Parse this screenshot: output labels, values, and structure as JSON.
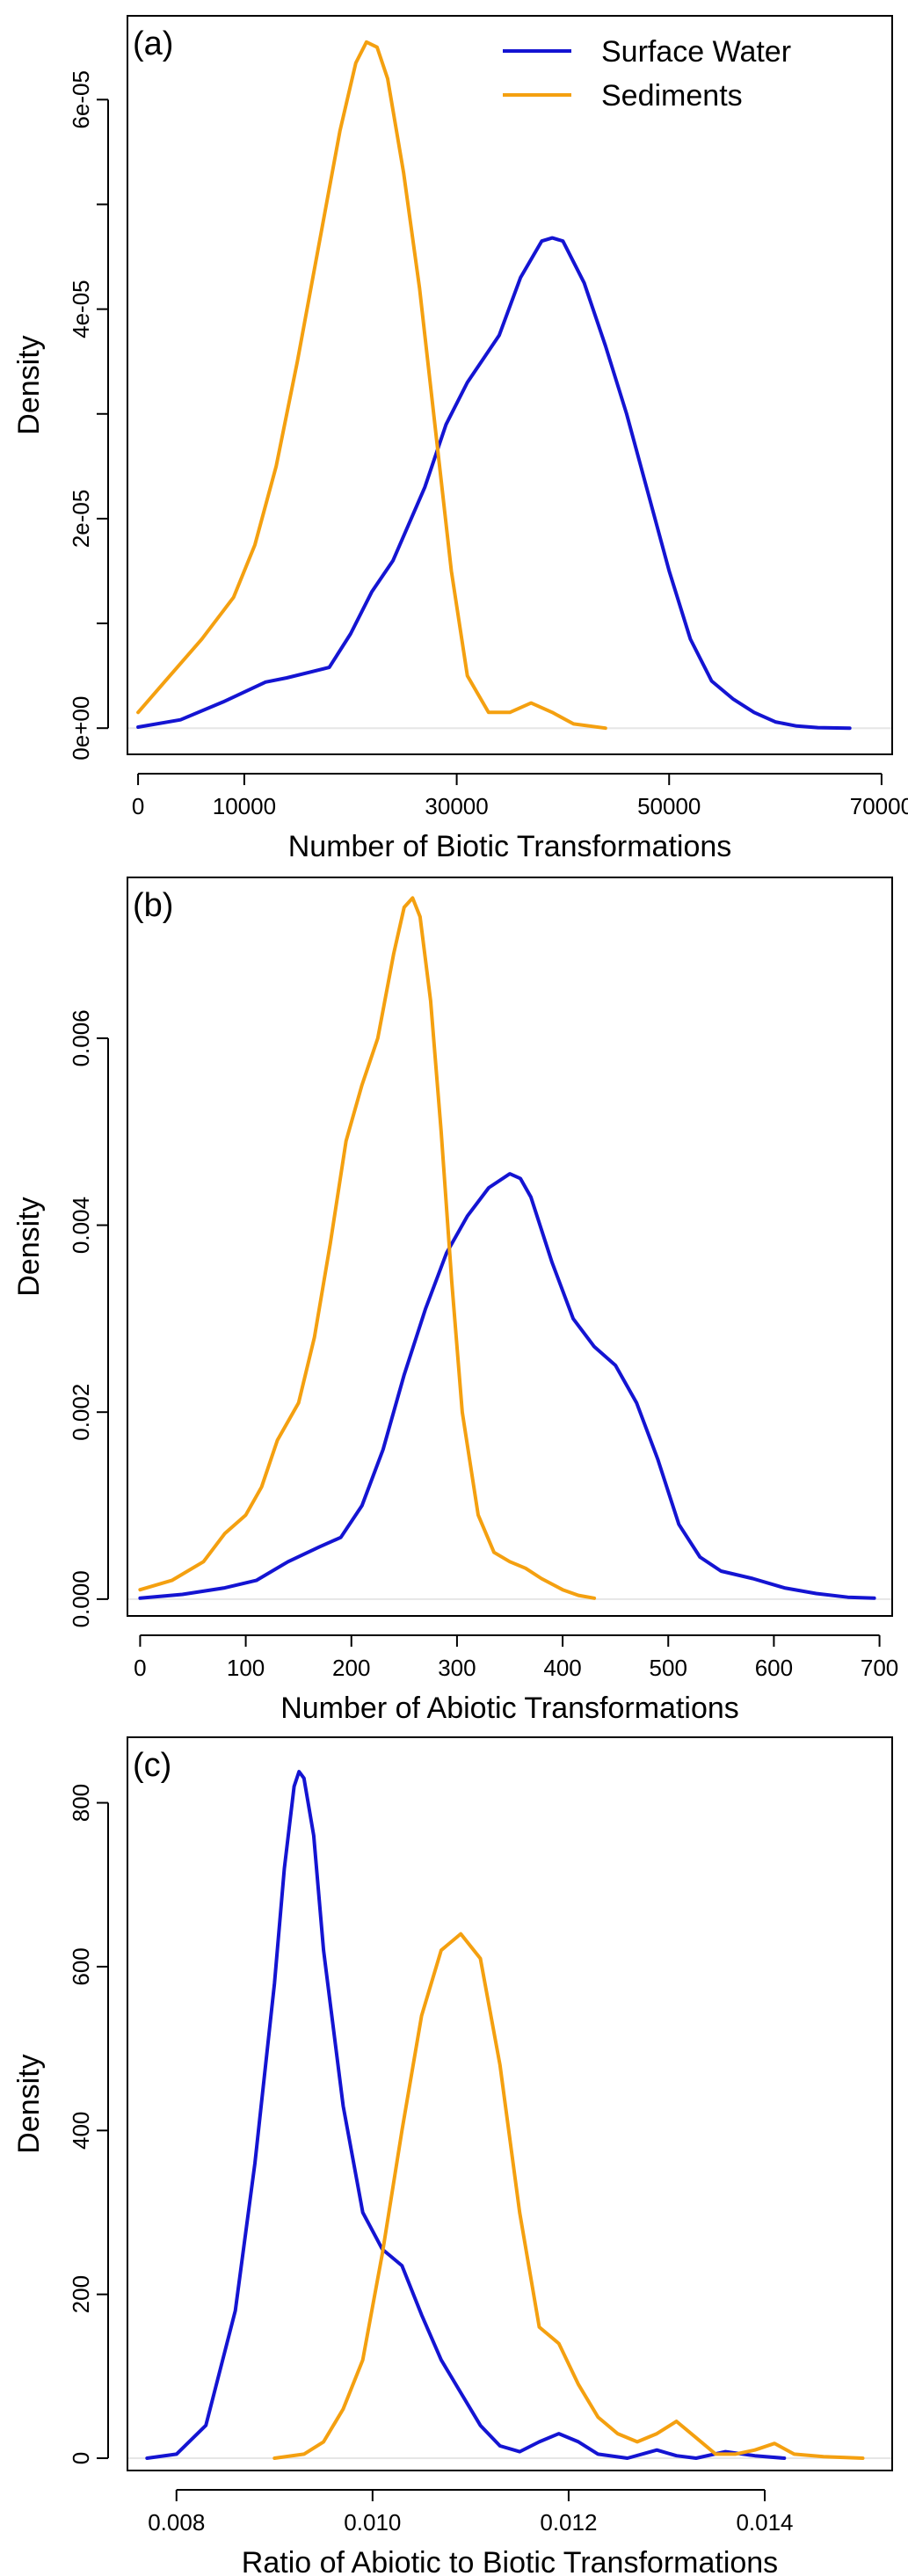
{
  "colors": {
    "surface_water": "#1414d2",
    "sediments": "#f4a010"
  },
  "chart_data": [
    {
      "type": "line",
      "panel_label": "(a)",
      "xlabel": "Number of Biotic Transformations",
      "ylabel": "Density",
      "xlim": [
        -1000,
        71000
      ],
      "ylim": [
        -2.5e-06,
        6.8e-05
      ],
      "x_ticks": [
        0,
        10000,
        30000,
        50000,
        70000
      ],
      "x_tick_labels": [
        "0",
        "10000",
        "30000",
        "50000",
        "70000"
      ],
      "y_ticks": [
        0,
        1e-05,
        2e-05,
        3e-05,
        4e-05,
        5e-05,
        6e-05
      ],
      "y_tick_labels": [
        "0e+00",
        "",
        "2e-05",
        "",
        "4e-05",
        "",
        "6e-05"
      ],
      "legend": {
        "position": "top-right",
        "entries": [
          "Surface Water",
          "Sediments"
        ]
      },
      "series": [
        {
          "name": "Surface Water",
          "color": "#1414d2",
          "x": [
            0,
            4000,
            8000,
            12000,
            14000,
            18000,
            20000,
            22000,
            24000,
            27000,
            29000,
            31000,
            34000,
            36000,
            38000,
            39000,
            40000,
            42000,
            44000,
            46000,
            48000,
            50000,
            52000,
            54000,
            56000,
            58000,
            60000,
            62000,
            64000,
            67000
          ],
          "y": [
            1e-07,
            8e-07,
            2.5e-06,
            4.4e-06,
            4.8e-06,
            5.8e-06,
            9e-06,
            1.3e-05,
            1.6e-05,
            2.3e-05,
            2.9e-05,
            3.3e-05,
            3.75e-05,
            4.3e-05,
            4.65e-05,
            4.68e-05,
            4.65e-05,
            4.25e-05,
            3.65e-05,
            3e-05,
            2.25e-05,
            1.5e-05,
            8.5e-06,
            4.5e-06,
            2.8e-06,
            1.5e-06,
            6e-07,
            2e-07,
            5e-08,
            0.0
          ]
        },
        {
          "name": "Sediments",
          "color": "#f4a010",
          "x": [
            0,
            3000,
            6000,
            9000,
            11000,
            13000,
            15000,
            17000,
            19000,
            20500,
            21500,
            22500,
            23500,
            25000,
            26500,
            28000,
            29500,
            31000,
            33000,
            35000,
            37000,
            39000,
            41000,
            44000
          ],
          "y": [
            1.5e-06,
            5e-06,
            8.5e-06,
            1.25e-05,
            1.75e-05,
            2.5e-05,
            3.5e-05,
            4.6e-05,
            5.7e-05,
            6.35e-05,
            6.55e-05,
            6.5e-05,
            6.2e-05,
            5.3e-05,
            4.2e-05,
            2.85e-05,
            1.5e-05,
            5e-06,
            1.5e-06,
            1.5e-06,
            2.4e-06,
            1.5e-06,
            4e-07,
            0.0
          ]
        }
      ]
    },
    {
      "type": "line",
      "panel_label": "(b)",
      "xlabel": "Number of Abiotic Transformations",
      "ylabel": "Density",
      "xlim": [
        -12,
        712
      ],
      "ylim": [
        -0.00018,
        0.00772
      ],
      "x_ticks": [
        0,
        100,
        200,
        300,
        400,
        500,
        600,
        700
      ],
      "x_tick_labels": [
        "0",
        "100",
        "200",
        "300",
        "400",
        "500",
        "600",
        "700"
      ],
      "y_ticks": [
        0,
        0.002,
        0.004,
        0.006
      ],
      "y_tick_labels": [
        "0.000",
        "0.002",
        "0.004",
        "0.006"
      ],
      "series": [
        {
          "name": "Surface Water",
          "color": "#1414d2",
          "x": [
            0,
            40,
            80,
            110,
            140,
            170,
            190,
            210,
            230,
            250,
            270,
            290,
            310,
            330,
            350,
            360,
            370,
            390,
            410,
            430,
            450,
            470,
            490,
            510,
            530,
            550,
            580,
            610,
            640,
            670,
            695
          ],
          "y": [
            1e-05,
            5e-05,
            0.00012,
            0.0002,
            0.0004,
            0.00056,
            0.00066,
            0.001,
            0.0016,
            0.0024,
            0.0031,
            0.0037,
            0.0041,
            0.0044,
            0.00455,
            0.0045,
            0.0043,
            0.0036,
            0.003,
            0.0027,
            0.0025,
            0.0021,
            0.0015,
            0.0008,
            0.00045,
            0.0003,
            0.00022,
            0.00012,
            6e-05,
            2e-05,
            1e-05
          ]
        },
        {
          "name": "Sediments",
          "color": "#f4a010",
          "x": [
            0,
            30,
            60,
            80,
            100,
            115,
            130,
            150,
            165,
            180,
            195,
            210,
            225,
            240,
            250,
            258,
            265,
            275,
            285,
            295,
            305,
            320,
            335,
            350,
            365,
            380,
            400,
            415,
            430
          ],
          "y": [
            0.0001,
            0.0002,
            0.0004,
            0.0007,
            0.0009,
            0.0012,
            0.0017,
            0.0021,
            0.0028,
            0.0038,
            0.0049,
            0.0055,
            0.006,
            0.0069,
            0.0074,
            0.0075,
            0.0073,
            0.0064,
            0.005,
            0.0034,
            0.002,
            0.0009,
            0.0005,
            0.0004,
            0.00033,
            0.00022,
            0.0001,
            4e-05,
            1e-05
          ]
        }
      ]
    },
    {
      "type": "line",
      "panel_label": "(c)",
      "xlabel": "Ratio of Abiotic to Biotic Transformations",
      "ylabel": "Density",
      "xlim": [
        0.0075,
        0.0153
      ],
      "ylim": [
        -15,
        880
      ],
      "x_ticks": [
        0.008,
        0.01,
        0.012,
        0.014
      ],
      "x_tick_labels": [
        "0.008",
        "0.010",
        "0.012",
        "0.014"
      ],
      "y_ticks": [
        0,
        200,
        400,
        600,
        800
      ],
      "y_tick_labels": [
        "0",
        "200",
        "400",
        "600",
        "800"
      ],
      "series": [
        {
          "name": "Surface Water",
          "color": "#1414d2",
          "x": [
            0.0077,
            0.008,
            0.0083,
            0.0086,
            0.0088,
            0.009,
            0.0091,
            0.0092,
            0.00925,
            0.0093,
            0.0094,
            0.0095,
            0.0097,
            0.0099,
            0.0101,
            0.0103,
            0.0105,
            0.0107,
            0.0109,
            0.0111,
            0.0113,
            0.0115,
            0.0117,
            0.0119,
            0.0121,
            0.0123,
            0.0126,
            0.0129,
            0.0131,
            0.0133,
            0.0136,
            0.0139,
            0.0142
          ],
          "y": [
            0,
            5,
            40,
            180,
            360,
            580,
            720,
            820,
            838,
            830,
            760,
            620,
            430,
            300,
            255,
            235,
            175,
            120,
            80,
            40,
            15,
            8,
            20,
            30,
            20,
            5,
            0,
            10,
            3,
            0,
            8,
            3,
            0
          ]
        },
        {
          "name": "Sediments",
          "color": "#f4a010",
          "x": [
            0.009,
            0.0093,
            0.0095,
            0.0097,
            0.0099,
            0.0101,
            0.0103,
            0.0105,
            0.0107,
            0.0109,
            0.0111,
            0.0113,
            0.0115,
            0.0117,
            0.0119,
            0.0121,
            0.0123,
            0.0125,
            0.0127,
            0.0129,
            0.0131,
            0.0133,
            0.0135,
            0.0137,
            0.0139,
            0.0141,
            0.0143,
            0.0146,
            0.015
          ],
          "y": [
            0,
            5,
            20,
            60,
            120,
            250,
            400,
            540,
            620,
            640,
            610,
            480,
            300,
            160,
            140,
            90,
            50,
            30,
            20,
            30,
            45,
            25,
            5,
            5,
            10,
            18,
            5,
            2,
            0
          ]
        }
      ]
    }
  ]
}
